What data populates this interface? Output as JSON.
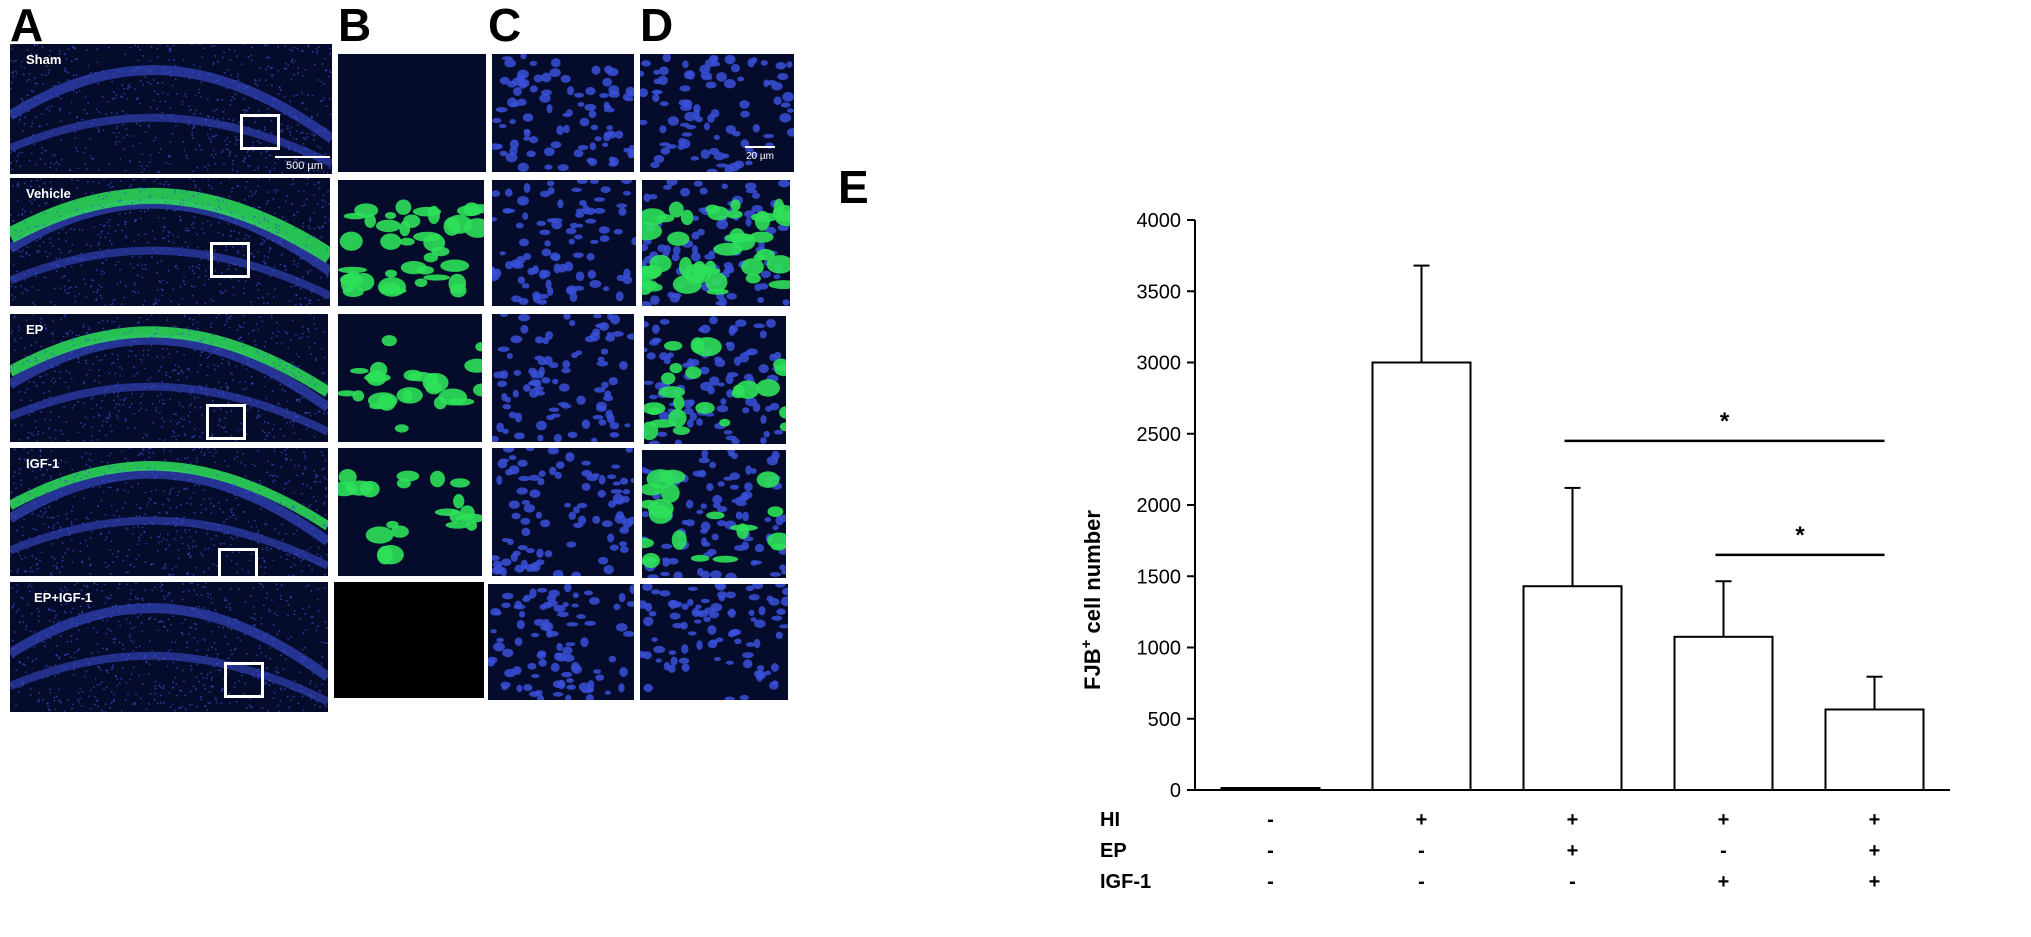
{
  "figure": {
    "panels": [
      "A",
      "B",
      "C",
      "D",
      "E"
    ],
    "conditions": [
      "Sham",
      "Vehicle",
      "EP",
      "IGF-1",
      "EP+IGF-1"
    ],
    "scale_bar_a": "500 µm",
    "scale_bar_d": "20 µm",
    "colors": {
      "nuclei": "#3a50d8",
      "fjb": "#2ee05a",
      "background": "#050b2a"
    }
  },
  "chart_data": {
    "type": "bar",
    "ylabel": "FJB",
    "ylabel_sup": "+",
    "ylabel_rest": " cell number",
    "ylim": [
      0,
      4000
    ],
    "yticks": [
      0,
      500,
      1000,
      1500,
      2000,
      2500,
      3000,
      3500,
      4000
    ],
    "values": [
      10,
      3000,
      1430,
      1075,
      565
    ],
    "errors": [
      10,
      680,
      690,
      390,
      230
    ],
    "treatment_rows": [
      {
        "name": "HI",
        "signs": [
          "-",
          "+",
          "+",
          "+",
          "+"
        ]
      },
      {
        "name": "EP",
        "signs": [
          "-",
          "-",
          "+",
          "-",
          "+"
        ]
      },
      {
        "name": "IGF-1",
        "signs": [
          "-",
          "-",
          "-",
          "+",
          "+"
        ]
      }
    ],
    "significance": [
      {
        "from": 2,
        "to": 4,
        "y": 2450,
        "label": "*"
      },
      {
        "from": 3,
        "to": 4,
        "y": 1650,
        "label": "*"
      }
    ]
  }
}
